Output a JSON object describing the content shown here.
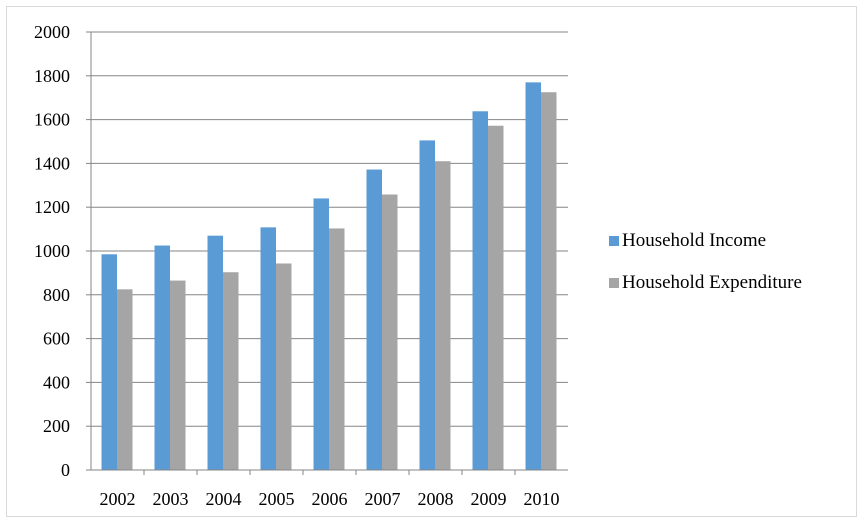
{
  "chart_data": {
    "type": "bar",
    "title": "",
    "xlabel": "",
    "ylabel": "",
    "categories": [
      "2002",
      "2003",
      "2004",
      "2005",
      "2006",
      "2007",
      "2008",
      "2009",
      "2010"
    ],
    "ylim": [
      0,
      2000
    ],
    "yticks": [
      "0",
      "200",
      "400",
      "600",
      "800",
      "1000",
      "1200",
      "1400",
      "1600",
      "1800",
      "2000"
    ],
    "grid": true,
    "legend_position": "right",
    "series": [
      {
        "name": "Household Income",
        "color": "#5b9bd5",
        "values": [
          985,
          1025,
          1070,
          1108,
          1240,
          1372,
          1505,
          1638,
          1770
        ]
      },
      {
        "name": "Household Expenditure",
        "color": "#a5a5a5",
        "values": [
          825,
          865,
          903,
          943,
          1103,
          1258,
          1410,
          1572,
          1725
        ]
      }
    ]
  }
}
